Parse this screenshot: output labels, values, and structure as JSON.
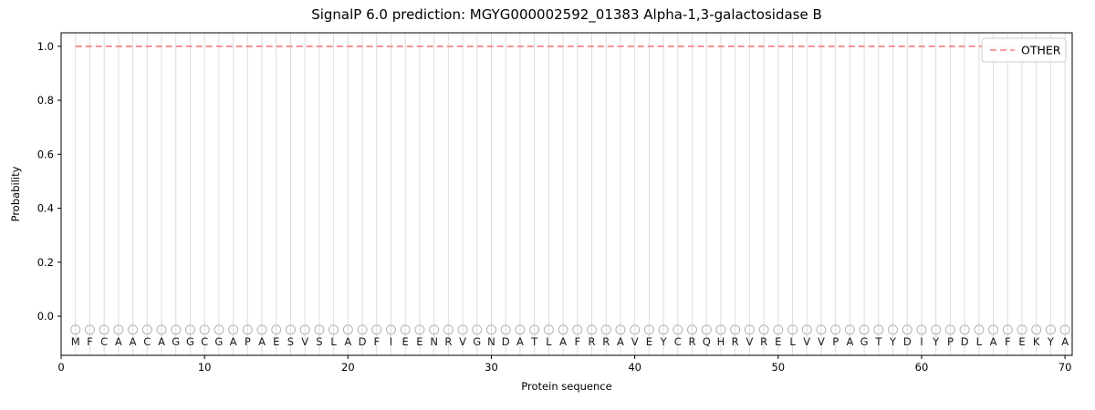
{
  "figure": {
    "kind": "signalp-prediction-plot"
  },
  "chart_data": {
    "type": "line",
    "title": "SignalP 6.0 prediction: MGYG000002592_01383 Alpha-1,3-galactosidase B",
    "xlabel": "Protein sequence",
    "ylabel": "Probability",
    "xlim": [
      0,
      70.5
    ],
    "ylim": [
      -0.145,
      1.05
    ],
    "x_ticks": [
      0,
      10,
      20,
      30,
      40,
      50,
      60,
      70
    ],
    "y_ticks": [
      0.0,
      0.2,
      0.4,
      0.6,
      0.8,
      1.0
    ],
    "grid": "vertical-line-at-each-residue",
    "sequence": "MFCAACAGGCGAPAESVSLADFIEENRVGNDATLAFRRAVEYCRQHRVRELVVPAGTYDIYPDLAFEKYA",
    "series": [
      {
        "name": "OTHER",
        "line_style": "dashed",
        "color": "#f87b7b",
        "x_start": 1,
        "values": [
          1.0,
          1.0,
          1.0,
          1.0,
          1.0,
          1.0,
          1.0,
          1.0,
          1.0,
          1.0,
          1.0,
          1.0,
          1.0,
          1.0,
          1.0,
          1.0,
          1.0,
          1.0,
          1.0,
          1.0,
          1.0,
          1.0,
          1.0,
          1.0,
          1.0,
          1.0,
          1.0,
          1.0,
          1.0,
          1.0,
          1.0,
          1.0,
          1.0,
          1.0,
          1.0,
          1.0,
          1.0,
          1.0,
          1.0,
          1.0,
          1.0,
          1.0,
          1.0,
          1.0,
          1.0,
          1.0,
          1.0,
          1.0,
          1.0,
          1.0,
          1.0,
          1.0,
          1.0,
          1.0,
          1.0,
          1.0,
          1.0,
          1.0,
          1.0,
          1.0,
          1.0,
          1.0,
          1.0,
          1.0,
          1.0,
          1.0,
          1.0,
          1.0,
          1.0,
          1.0
        ]
      }
    ],
    "residue_markers": {
      "shape": "open-circle",
      "y": -0.05,
      "stroke_color": "#b3b3b3"
    },
    "legend": {
      "position": "upper-right",
      "entries": [
        {
          "label": "OTHER",
          "style": "dashed",
          "color": "#f87b7b"
        }
      ]
    },
    "colors": {
      "grid": "#dcdcdc",
      "spine": "#000000",
      "text": "#000000",
      "letters": "#1a1a1a",
      "legend_border": "#cccccc",
      "background": "#ffffff"
    }
  }
}
